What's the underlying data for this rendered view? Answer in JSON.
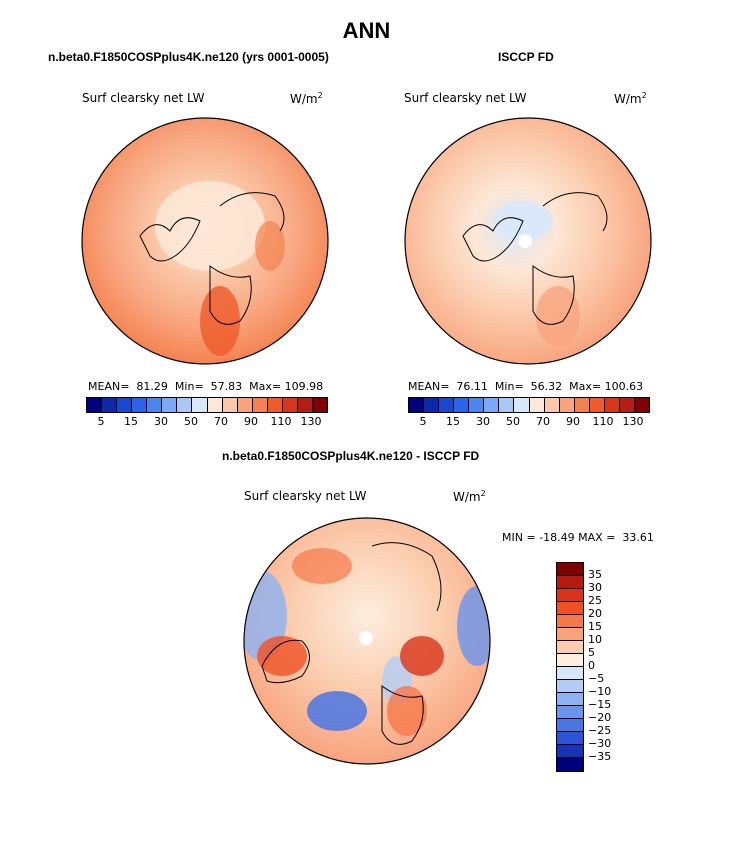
{
  "title": "ANN",
  "colors": {
    "abs_scale": [
      "#00007f",
      "#0a2aa8",
      "#1848cf",
      "#2a64e8",
      "#4a86f0",
      "#7aa9f5",
      "#a8c8f8",
      "#d8e8fb",
      "#fde7d6",
      "#fbc9aa",
      "#f8a57f",
      "#f4814f",
      "#ef5a2a",
      "#d7361a",
      "#b31d12",
      "#7f0000"
    ],
    "diff_scale": [
      "#7f0000",
      "#b51a0e",
      "#d9331a",
      "#ef5125",
      "#f6784a",
      "#f8a27e",
      "#fbcdae",
      "#fdeee0",
      "#d8e8fb",
      "#b3cdf7",
      "#8db1f2",
      "#6b94ec",
      "#4a76e3",
      "#2b55d6",
      "#1634b7",
      "#00007f"
    ]
  },
  "chart_data": [
    {
      "type": "heatmap",
      "projection": "north polar stereographic",
      "title": "n.beta0.F1850COSPplus4K.ne120 (yrs 0001-0005)",
      "variable": "Surf clearsky net LW",
      "units": "W/m",
      "units_exp": "2",
      "mean_label": "MEAN=",
      "mean": "81.29",
      "min_label": "Min=",
      "min": "57.83",
      "max_label": "Max=",
      "max": "109.98",
      "colorbar_levels": [
        5,
        10,
        15,
        20,
        30,
        40,
        50,
        60,
        70,
        80,
        90,
        100,
        110,
        120,
        130
      ],
      "colorbar_labels": [
        "5",
        "15",
        "30",
        "50",
        "70",
        "90",
        "110",
        "130"
      ]
    },
    {
      "type": "heatmap",
      "projection": "north polar stereographic",
      "title": "ISCCP FD",
      "variable": "Surf clearsky net LW",
      "units": "W/m",
      "units_exp": "2",
      "mean_label": "MEAN=",
      "mean": "76.11",
      "min_label": "Min=",
      "min": "56.32",
      "max_label": "Max=",
      "max": "100.63",
      "colorbar_levels": [
        5,
        10,
        15,
        20,
        30,
        40,
        50,
        60,
        70,
        80,
        90,
        100,
        110,
        120,
        130
      ],
      "colorbar_labels": [
        "5",
        "15",
        "30",
        "50",
        "70",
        "90",
        "110",
        "130"
      ]
    },
    {
      "type": "heatmap",
      "projection": "north polar stereographic",
      "title": "n.beta0.F1850COSPplus4K.ne120 - ISCCP FD",
      "variable": "Surf clearsky net LW",
      "units": "W/m",
      "units_exp": "2",
      "min_label": "MIN =",
      "min": "-18.49",
      "max_label": "MAX =",
      "max": "33.61",
      "colorbar_labels": [
        "35",
        "30",
        "25",
        "20",
        "15",
        "10",
        "5",
        "0",
        "−5",
        "−10",
        "−15",
        "−20",
        "−25",
        "−30",
        "−35"
      ]
    }
  ]
}
